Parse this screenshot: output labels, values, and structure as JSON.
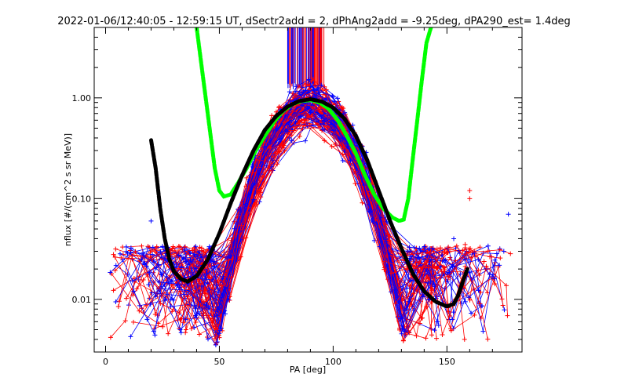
{
  "chart_data": {
    "type": "line",
    "title": "2022-01-06/12:40:05 - 12:59:15 UT, dSectr2add = 2, dPhAng2add = -9.25deg, dPA290_est=   1.4deg",
    "xlabel": "PA [deg]",
    "ylabel": "nflux [#/(cm^2 s sr MeV)]",
    "xlim": [
      -5,
      183
    ],
    "ylim": [
      0.003,
      5.0
    ],
    "yscale": "log",
    "x_ticks": [
      0,
      50,
      100,
      150
    ],
    "x_tick_labels": [
      "0",
      "50",
      "100",
      "150"
    ],
    "y_ticks": [
      0.01,
      0.1,
      1.0
    ],
    "y_tick_labels": [
      "0.01",
      "0.10",
      "1.00"
    ],
    "grid": false,
    "colors": {
      "red_traces": "#ff0000",
      "blue_traces": "#0000ff",
      "black_fit": "#000000",
      "green_fit": "#00ff00"
    },
    "series": [
      {
        "color": "#00ff00",
        "style": "thick-dashed",
        "x": [
          40,
          43,
          46,
          48,
          50,
          52,
          55,
          58,
          62,
          66,
          70,
          74,
          78,
          82,
          86,
          90,
          94,
          98,
          102,
          106,
          110,
          114,
          118,
          122,
          126,
          129,
          131,
          133,
          135,
          137,
          139,
          141,
          143
        ],
        "y": [
          5.0,
          1.5,
          0.45,
          0.2,
          0.12,
          0.105,
          0.11,
          0.14,
          0.2,
          0.3,
          0.42,
          0.58,
          0.74,
          0.86,
          0.93,
          0.95,
          0.9,
          0.78,
          0.6,
          0.42,
          0.28,
          0.17,
          0.11,
          0.08,
          0.065,
          0.06,
          0.062,
          0.1,
          0.25,
          0.6,
          1.5,
          3.5,
          5.0
        ]
      },
      {
        "color": "#000000",
        "style": "thick-dashed",
        "x": [
          20,
          22,
          24,
          26,
          28,
          30,
          33,
          36,
          40,
          45,
          50,
          55,
          60,
          65,
          70,
          75,
          80,
          85,
          90,
          95,
          100,
          105,
          110,
          115,
          120,
          125,
          130,
          135,
          140,
          145,
          150,
          153,
          155,
          157,
          159
        ],
        "y": [
          0.38,
          0.2,
          0.08,
          0.04,
          0.025,
          0.019,
          0.016,
          0.015,
          0.017,
          0.025,
          0.045,
          0.09,
          0.17,
          0.3,
          0.48,
          0.66,
          0.82,
          0.93,
          0.97,
          0.92,
          0.8,
          0.62,
          0.42,
          0.24,
          0.12,
          0.06,
          0.032,
          0.018,
          0.012,
          0.0095,
          0.0085,
          0.009,
          0.011,
          0.015,
          0.02
        ]
      }
    ]
  }
}
